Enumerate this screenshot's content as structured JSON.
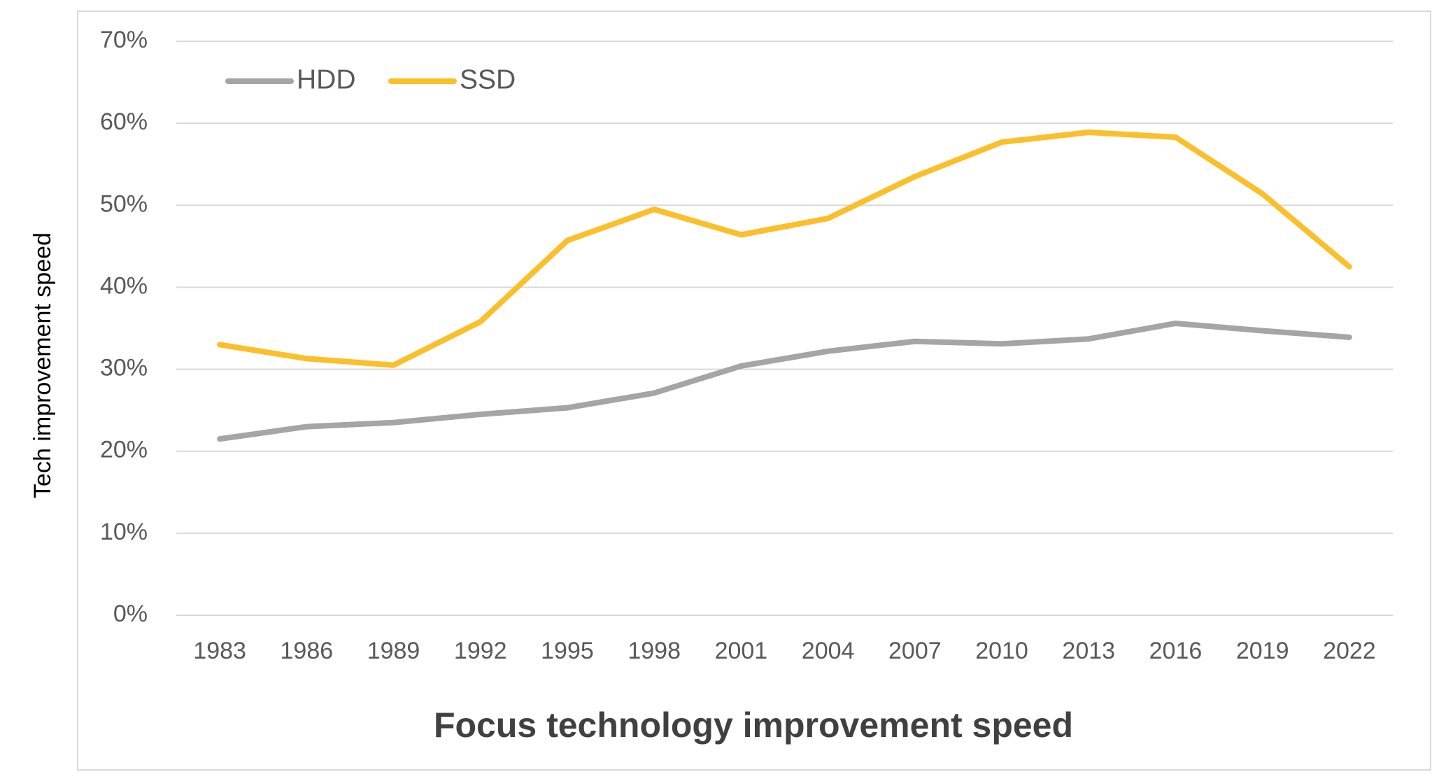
{
  "chart_data": {
    "type": "line",
    "title": "Focus technology improvement speed",
    "y_label": "Tech improvement speed",
    "categories": [
      "1983",
      "1986",
      "1989",
      "1992",
      "1995",
      "1998",
      "2001",
      "2004",
      "2007",
      "2010",
      "2013",
      "2016",
      "2019",
      "2022"
    ],
    "series": [
      {
        "name": "HDD",
        "color": "#a5a5a5",
        "values": [
          21.5,
          23.0,
          23.5,
          24.5,
          25.3,
          27.1,
          30.4,
          32.2,
          33.4,
          33.1,
          33.7,
          35.6,
          34.7,
          33.9
        ]
      },
      {
        "name": "SSD",
        "color": "#fbbf2b",
        "values": [
          33.0,
          31.3,
          30.5,
          35.8,
          45.7,
          49.5,
          46.4,
          48.4,
          53.5,
          57.7,
          58.9,
          58.3,
          51.4,
          42.5
        ]
      }
    ],
    "ylim": [
      0,
      70
    ],
    "yticks": [
      {
        "value": 0,
        "label": "0%"
      },
      {
        "value": 10,
        "label": "10%"
      },
      {
        "value": 20,
        "label": "20%"
      },
      {
        "value": 30,
        "label": "30%"
      },
      {
        "value": 40,
        "label": "40%"
      },
      {
        "value": 50,
        "label": "50%"
      },
      {
        "value": 60,
        "label": "60%"
      },
      {
        "value": 70,
        "label": "70%"
      }
    ],
    "grid": true,
    "legend": "top-left"
  }
}
